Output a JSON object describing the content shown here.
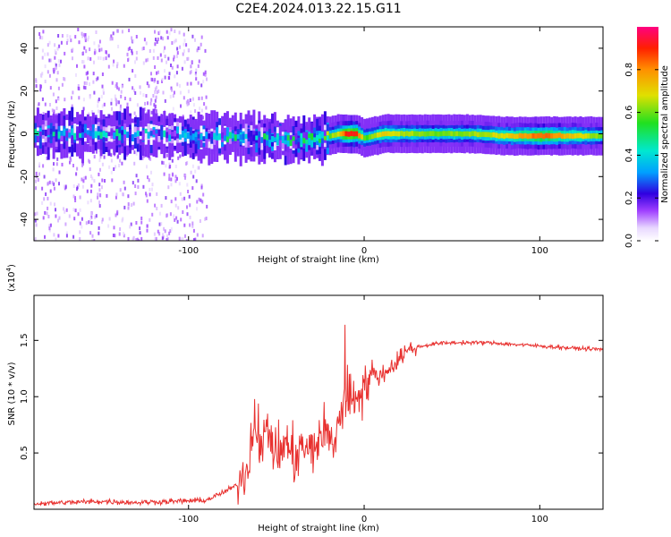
{
  "title": "C2E4.2024.013.22.15.G11",
  "colors": {
    "signal": "#e8312f",
    "frame": "#000000"
  },
  "chart_data": [
    {
      "type": "heatmap",
      "name": "spectrogram",
      "xlabel": "Height of straight line (km)",
      "ylabel": "Frequency (Hz)",
      "xlim": [
        -188,
        136
      ],
      "ylim": [
        -50,
        50
      ],
      "x_ticks": [
        -100,
        0,
        100
      ],
      "y_ticks": [
        -40,
        -20,
        0,
        20,
        40
      ],
      "colorbar": {
        "label": "Normalized spectral amplitude",
        "range": [
          0.0,
          1.0
        ],
        "ticks": [
          0.0,
          0.2,
          0.4,
          0.6,
          0.8
        ],
        "tick_labels": [
          "0.0",
          "0.2",
          "0.4",
          "0.6",
          "0.8"
        ]
      },
      "ridge": {
        "x": [
          -188,
          -150,
          -110,
          -95,
          -80,
          -60,
          -40,
          -25,
          -15,
          -10,
          -5,
          0,
          10,
          20,
          40,
          60,
          80,
          100,
          120,
          136
        ],
        "freq_center": [
          0,
          0,
          0,
          -2,
          -1,
          -2,
          -3,
          -2,
          0,
          0,
          0,
          -2,
          0,
          0,
          0,
          0,
          -1,
          -1,
          -1,
          -1
        ],
        "amplitude": [
          0.3,
          0.32,
          0.3,
          0.3,
          0.35,
          0.38,
          0.4,
          0.5,
          0.7,
          0.95,
          0.9,
          0.55,
          0.7,
          0.65,
          0.6,
          0.62,
          0.7,
          0.85,
          0.7,
          0.6
        ]
      },
      "noise_region_x": [
        -188,
        -90
      ]
    },
    {
      "type": "line",
      "name": "snr",
      "xlabel": "Height of straight line (km)",
      "ylabel": "SNR (10 * v/v)",
      "y_multiplier": "(x10",
      "y_multiplier_exp": "4",
      "y_multiplier_close": ")",
      "xlim": [
        -188,
        136
      ],
      "ylim": [
        0,
        19000
      ],
      "x_ticks": [
        -100,
        0,
        100
      ],
      "y_ticks": [
        5000,
        10000,
        15000
      ],
      "y_tick_labels": [
        "0.5",
        "1.0",
        "1.5"
      ],
      "series": [
        {
          "x": [
            -188,
            -170,
            -150,
            -130,
            -110,
            -90,
            -80,
            -72,
            -66,
            -62,
            -58,
            -55,
            -50,
            -45,
            -40,
            -35,
            -30,
            -25,
            -22,
            -18,
            -15,
            -12,
            -10,
            -8,
            -5,
            -2,
            0,
            3,
            6,
            10,
            14,
            18,
            22,
            26,
            30,
            40,
            50,
            60,
            70,
            80,
            90,
            100,
            110,
            120,
            136
          ],
          "y": [
            500,
            600,
            700,
            600,
            700,
            800,
            1500,
            2200,
            4000,
            8500,
            5000,
            7500,
            4500,
            6000,
            4500,
            5500,
            5000,
            6500,
            7000,
            5500,
            7800,
            9000,
            9500,
            9800,
            10000,
            10800,
            11000,
            11500,
            12000,
            11800,
            12500,
            13000,
            13800,
            14200,
            14400,
            14700,
            14800,
            14800,
            14800,
            14700,
            14600,
            14500,
            14400,
            14300,
            14200
          ]
        }
      ]
    }
  ]
}
